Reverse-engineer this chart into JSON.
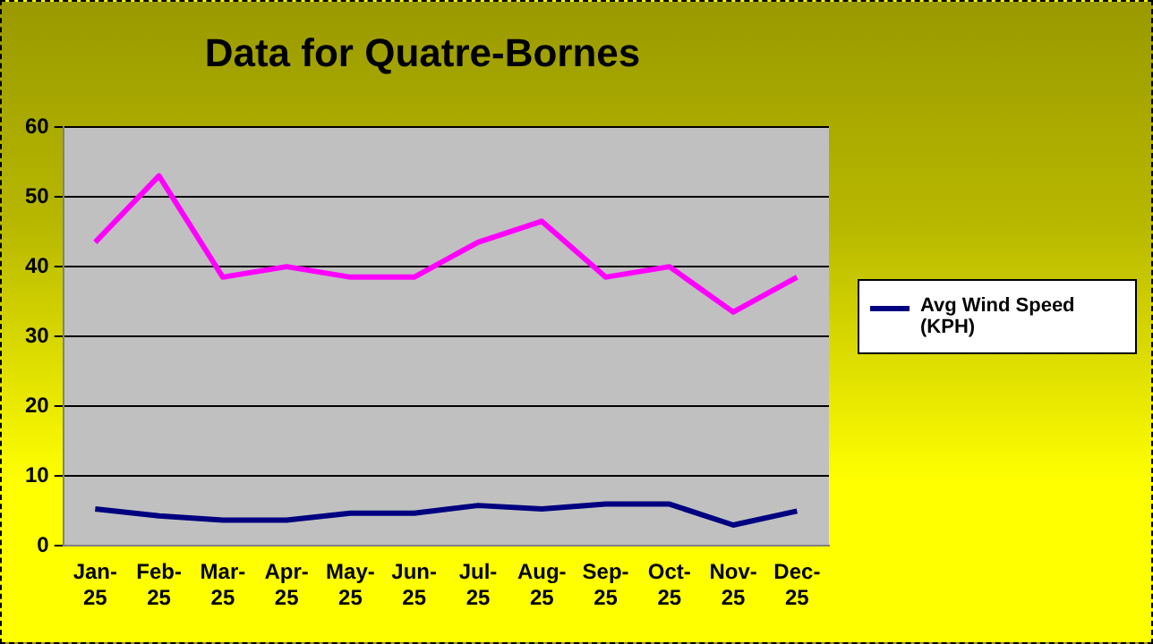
{
  "chart_data": {
    "type": "line",
    "title": "Data for Quatre-Bornes",
    "categories": [
      "Jan-25",
      "Feb-25",
      "Mar-25",
      "Apr-25",
      "May-25",
      "Jun-25",
      "Jul-25",
      "Aug-25",
      "Sep-25",
      "Oct-25",
      "Nov-25",
      "Dec-25"
    ],
    "series": [
      {
        "color": "#ff00ff",
        "values": [
          43.5,
          53,
          38.5,
          40,
          38.5,
          38.5,
          43.5,
          46.5,
          38.5,
          40,
          33.5,
          38.5
        ]
      },
      {
        "name": "Avg Wind Speed (KPH)",
        "color": "#000080",
        "values": [
          5.3,
          4.3,
          3.7,
          3.7,
          4.7,
          4.7,
          5.8,
          5.3,
          6,
          6,
          3,
          5
        ]
      }
    ],
    "ylim": [
      0,
      60
    ],
    "yticks": [
      0,
      10,
      20,
      30,
      40,
      50,
      60
    ],
    "grid": "y",
    "legend": "right",
    "marker": "none",
    "line_style": "solid"
  }
}
